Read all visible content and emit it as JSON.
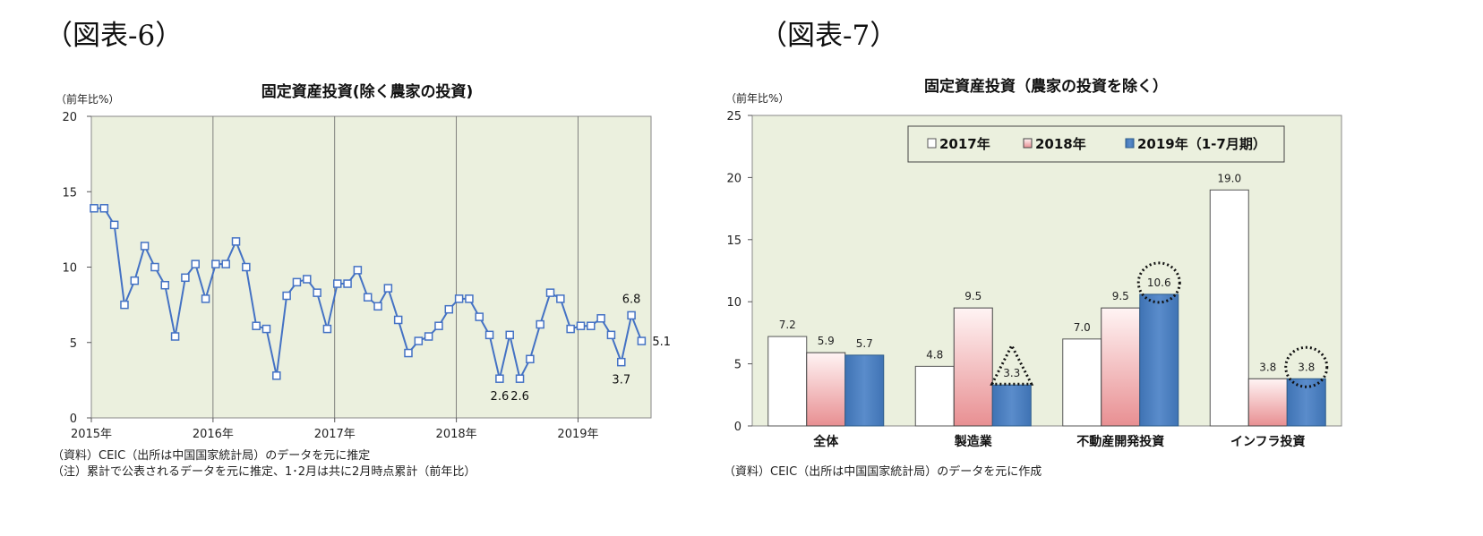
{
  "figures": {
    "left_label": "（図表-6）",
    "right_label": "（図表-7）"
  },
  "chart_data": [
    {
      "type": "line",
      "title": "固定資産投資(除く農家の投資)",
      "ylabel": "（前年比%）",
      "xlabel": "",
      "ylim": [
        0,
        20
      ],
      "yticks": [
        0,
        5,
        10,
        15,
        20
      ],
      "x_labels": [
        "2015年",
        "2016年",
        "2017年",
        "2018年",
        "2019年"
      ],
      "grid": false,
      "series": [
        {
          "values": [
            13.9,
            13.9,
            12.8,
            7.5,
            9.1,
            11.4,
            10.0,
            8.8,
            5.4,
            9.3,
            10.2,
            7.9,
            10.2,
            10.2,
            11.7,
            10.0,
            6.1,
            5.9,
            2.8,
            8.1,
            9.0,
            9.2,
            8.3,
            5.9,
            8.9,
            8.9,
            9.8,
            8.0,
            7.4,
            8.6,
            6.5,
            4.3,
            5.1,
            5.4,
            6.1,
            7.2,
            7.9,
            7.9,
            6.7,
            5.5,
            2.6,
            5.5,
            2.6,
            3.9,
            6.2,
            8.3,
            7.9,
            5.9,
            6.1,
            6.1,
            6.6,
            5.5,
            3.7,
            6.8,
            5.1
          ]
        }
      ],
      "annotations": [
        {
          "index": 40,
          "text": "2.6"
        },
        {
          "index": 42,
          "text": "2.6"
        },
        {
          "index": 52,
          "text": "3.7"
        },
        {
          "index": 53,
          "text": "6.8"
        },
        {
          "index": 54,
          "text": "5.1"
        }
      ],
      "notes": [
        "（資料）CEIC（出所は中国国家統計局）のデータを元に推定",
        "（注）累計で公表されるデータを元に推定、1･2月は共に2月時点累計（前年比）"
      ],
      "colors": {
        "line": "#4472C4",
        "plot_bg": "#EBF0DE"
      }
    },
    {
      "type": "bar",
      "title": "固定資産投資（農家の投資を除く）",
      "ylabel": "（前年比%）",
      "xlabel": "",
      "ylim": [
        0,
        25
      ],
      "yticks": [
        0,
        5,
        10,
        15,
        20,
        25
      ],
      "categories": [
        "全体",
        "製造業",
        "不動産開発投資",
        "インフラ投資"
      ],
      "series": [
        {
          "name": "2017年",
          "values": [
            7.2,
            4.8,
            7.0,
            19.0
          ],
          "labels": [
            "7.2",
            "4.8",
            "7.0",
            "19.0"
          ]
        },
        {
          "name": "2018年",
          "values": [
            5.9,
            9.5,
            9.5,
            3.8
          ],
          "labels": [
            "5.9",
            "9.5",
            "9.5",
            "3.8"
          ]
        },
        {
          "name": "2019年（1-7月期）",
          "values": [
            5.7,
            3.3,
            10.6,
            3.8
          ],
          "labels": [
            "5.7",
            "3.3",
            "10.6",
            "3.8"
          ]
        }
      ],
      "legend_position": "top",
      "grid": false,
      "notes": [
        "（資料）CEIC（出所は中国国家統計局）のデータを元に作成"
      ],
      "colors": {
        "s2017": "#FFFFFF",
        "s2018": "#F2B8B8",
        "s2019": "#4F81BD",
        "plot_bg": "#EBF0DE"
      }
    }
  ]
}
